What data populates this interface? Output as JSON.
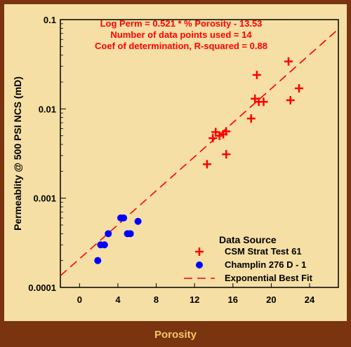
{
  "chart_data": {
    "type": "scatter",
    "xlabel": "Porosity",
    "ylabel": "Permeablity @ 500 PSI NCS (mD)",
    "xlim": [
      -2,
      27
    ],
    "ylim": [
      0.0001,
      0.1
    ],
    "y_scale": "log",
    "x_ticks": [
      "0",
      "4",
      "8",
      "12",
      "16",
      "20",
      "24"
    ],
    "y_ticks": [
      "0.0001",
      "0.001",
      "0.01",
      "0.1"
    ],
    "y_tick_values": [
      0.0001,
      0.001,
      0.01,
      0.1
    ],
    "x_tick_values": [
      0,
      4,
      8,
      12,
      16,
      20,
      24
    ],
    "annotations": [
      "Log Perm  = 0.521 * % Porosity  - 13.53",
      "Number of data points used = 14",
      "Coef of determination, R-squared = 0.88"
    ],
    "legend_title": "Data Source",
    "legend_position": "bottom-right",
    "series": [
      {
        "name": "CSM Strat Test 61",
        "marker": "plus",
        "color": "#ff0000",
        "points": [
          {
            "x": 13.3,
            "y": 0.0024
          },
          {
            "x": 13.9,
            "y": 0.0047
          },
          {
            "x": 14.2,
            "y": 0.0055
          },
          {
            "x": 14.6,
            "y": 0.005
          },
          {
            "x": 15.0,
            "y": 0.0052
          },
          {
            "x": 15.3,
            "y": 0.0056
          },
          {
            "x": 15.3,
            "y": 0.0031
          },
          {
            "x": 17.9,
            "y": 0.0078
          },
          {
            "x": 18.3,
            "y": 0.013
          },
          {
            "x": 18.5,
            "y": 0.024
          },
          {
            "x": 18.7,
            "y": 0.012
          },
          {
            "x": 19.2,
            "y": 0.012
          },
          {
            "x": 21.8,
            "y": 0.034
          },
          {
            "x": 22.0,
            "y": 0.0125
          },
          {
            "x": 22.9,
            "y": 0.017
          }
        ]
      },
      {
        "name": "Champlin 276 D - 1",
        "marker": "circle",
        "color": "#0000ff",
        "points": [
          {
            "x": 1.9,
            "y": 0.0002
          },
          {
            "x": 2.2,
            "y": 0.0003
          },
          {
            "x": 2.6,
            "y": 0.0003
          },
          {
            "x": 3.0,
            "y": 0.0004
          },
          {
            "x": 4.3,
            "y": 0.0006
          },
          {
            "x": 4.6,
            "y": 0.0006
          },
          {
            "x": 5.0,
            "y": 0.0004
          },
          {
            "x": 5.3,
            "y": 0.0004
          },
          {
            "x": 6.1,
            "y": 0.00055
          }
        ]
      },
      {
        "name": "Exponential  Best Fit",
        "marker": "dashed-line",
        "color": "#ff0000",
        "line": [
          {
            "x": -2,
            "y": 0.000135
          },
          {
            "x": 26.8,
            "y": 0.075
          }
        ]
      }
    ]
  },
  "colors": {
    "outer_frame": "#7a3410",
    "plot_background": "#f5dfa4",
    "annotation_text": "#ff0000",
    "axis_label_bar_text": "#f4c865"
  }
}
